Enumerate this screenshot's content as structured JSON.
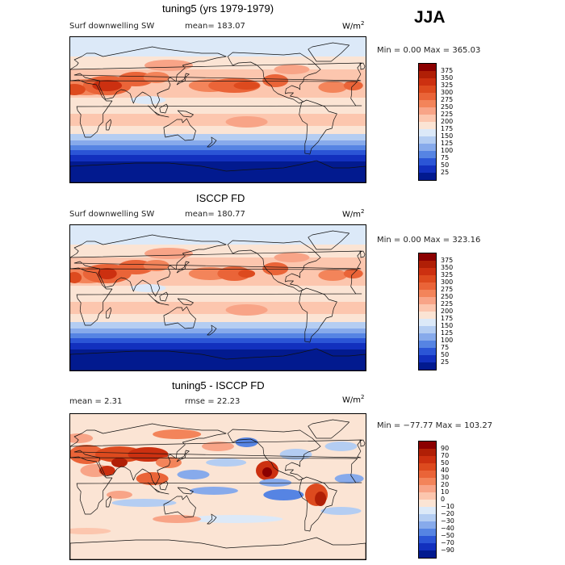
{
  "season": "JJA",
  "panels": [
    {
      "title": "tuning5 (yrs 1979-1979)",
      "variable": "Surf downwelling SW",
      "stat": "mean=  183.07",
      "units": "W/m",
      "units_exp": "2",
      "minmax": "Min =    0.00 Max = 365.03",
      "legend": [
        "375",
        "350",
        "325",
        "300",
        "275",
        "250",
        "225",
        "200",
        "175",
        "150",
        "125",
        "100",
        "75",
        "50",
        "25"
      ],
      "palette": [
        "#8b0000",
        "#b01f06",
        "#cc3010",
        "#dd4a1e",
        "#ea6438",
        "#f3845a",
        "#f8a487",
        "#fcc6ae",
        "#fbe4d4",
        "#dce9f8",
        "#b4cdf2",
        "#87aaeb",
        "#5684e3",
        "#2b55d6",
        "#1230be",
        "#021a8f"
      ],
      "map_type": "absolute",
      "mean": 183.07
    },
    {
      "title": "ISCCP FD",
      "variable": "Surf downwelling SW",
      "stat": "mean=  180.77",
      "units": "W/m",
      "units_exp": "2",
      "minmax": "Min =    0.00 Max = 323.16",
      "legend": [
        "375",
        "350",
        "325",
        "300",
        "275",
        "250",
        "225",
        "200",
        "175",
        "150",
        "125",
        "100",
        "75",
        "50",
        "25"
      ],
      "palette": [
        "#8b0000",
        "#b01f06",
        "#cc3010",
        "#dd4a1e",
        "#ea6438",
        "#f3845a",
        "#f8a487",
        "#fcc6ae",
        "#fbe4d4",
        "#dce9f8",
        "#b4cdf2",
        "#87aaeb",
        "#5684e3",
        "#2b55d6",
        "#1230be",
        "#021a8f"
      ],
      "map_type": "absolute",
      "mean": 180.77
    },
    {
      "title": "tuning5 - ISCCP FD",
      "variable": "mean =    2.31",
      "stat": "rmse =   22.23",
      "units": "W/m",
      "units_exp": "2",
      "minmax": "Min = −77.77 Max = 103.27",
      "legend": [
        "90",
        "70",
        "50",
        "40",
        "30",
        "20",
        "10",
        "0",
        "−10",
        "−20",
        "−30",
        "−40",
        "−50",
        "−70",
        "−90"
      ],
      "palette": [
        "#8b0000",
        "#b01f06",
        "#cc3010",
        "#dd4a1e",
        "#ea6438",
        "#f3845a",
        "#f8a487",
        "#fcc6ae",
        "#fbe4d4",
        "#dce9f8",
        "#b4cdf2",
        "#87aaeb",
        "#5684e3",
        "#2b55d6",
        "#1230be",
        "#021a8f"
      ],
      "map_type": "difference",
      "mean": 2.31,
      "rmse": 22.23
    }
  ]
}
